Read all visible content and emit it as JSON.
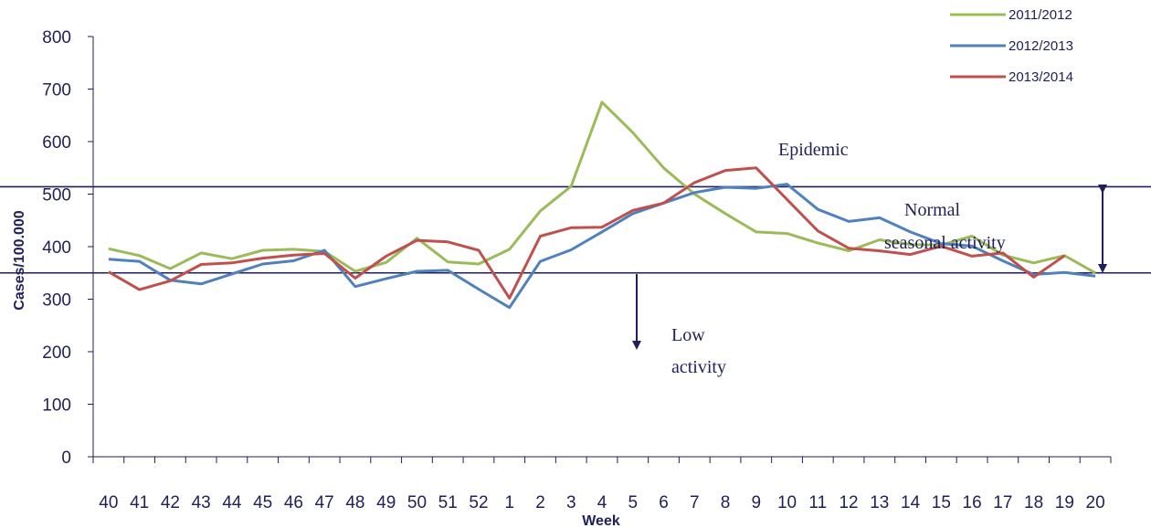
{
  "chart_data": {
    "type": "line",
    "title": "",
    "xlabel": "Week",
    "ylabel": "Cases/100.000",
    "categories": [
      "40",
      "41",
      "42",
      "43",
      "44",
      "45",
      "46",
      "47",
      "48",
      "49",
      "50",
      "51",
      "52",
      "1",
      "2",
      "3",
      "4",
      "5",
      "6",
      "7",
      "8",
      "9",
      "10",
      "11",
      "12",
      "13",
      "14",
      "15",
      "16",
      "17",
      "18",
      "19",
      "20"
    ],
    "ylim": [
      0,
      800
    ],
    "yticks": [
      0,
      100,
      200,
      300,
      400,
      500,
      600,
      700,
      800
    ],
    "grid": false,
    "legend_position": "top-right",
    "series": [
      {
        "name": "2011/2012",
        "color": "#9bbb59",
        "values": [
          396,
          383,
          358,
          388,
          377,
          393,
          395,
          391,
          353,
          370,
          416,
          371,
          367,
          395,
          468,
          515,
          675,
          617,
          550,
          500,
          463,
          428,
          425,
          407,
          392,
          413,
          404,
          403,
          420,
          384,
          369,
          383,
          350
        ]
      },
      {
        "name": "2012/2013",
        "color": "#4f81bd",
        "values": [
          376,
          372,
          336,
          329,
          348,
          367,
          373,
          393,
          324,
          339,
          353,
          355,
          319,
          284,
          372,
          394,
          428,
          463,
          483,
          503,
          513,
          511,
          519,
          471,
          448,
          455,
          428,
          406,
          401,
          373,
          347,
          351,
          344
        ]
      },
      {
        "name": "2013/2014",
        "color": "#c0504d",
        "values": [
          352,
          318,
          335,
          366,
          369,
          378,
          384,
          387,
          340,
          382,
          412,
          409,
          393,
          302,
          420,
          436,
          437,
          469,
          483,
          522,
          545,
          550,
          490,
          430,
          397,
          392,
          385,
          401,
          382,
          388,
          342,
          383,
          null
        ]
      }
    ],
    "thresholds": [
      {
        "label": "Epidemic",
        "value": 514
      },
      {
        "label": "Low activity",
        "value": 350
      }
    ],
    "annotations": {
      "epidemic": "Epidemic",
      "normal_line1": "Normal",
      "normal_line2": "seasonal activity",
      "low_line1": "Low",
      "low_line2": "activity"
    },
    "colors": {
      "axis": "#1f1f5a",
      "threshold": "#1f1f5a"
    }
  }
}
